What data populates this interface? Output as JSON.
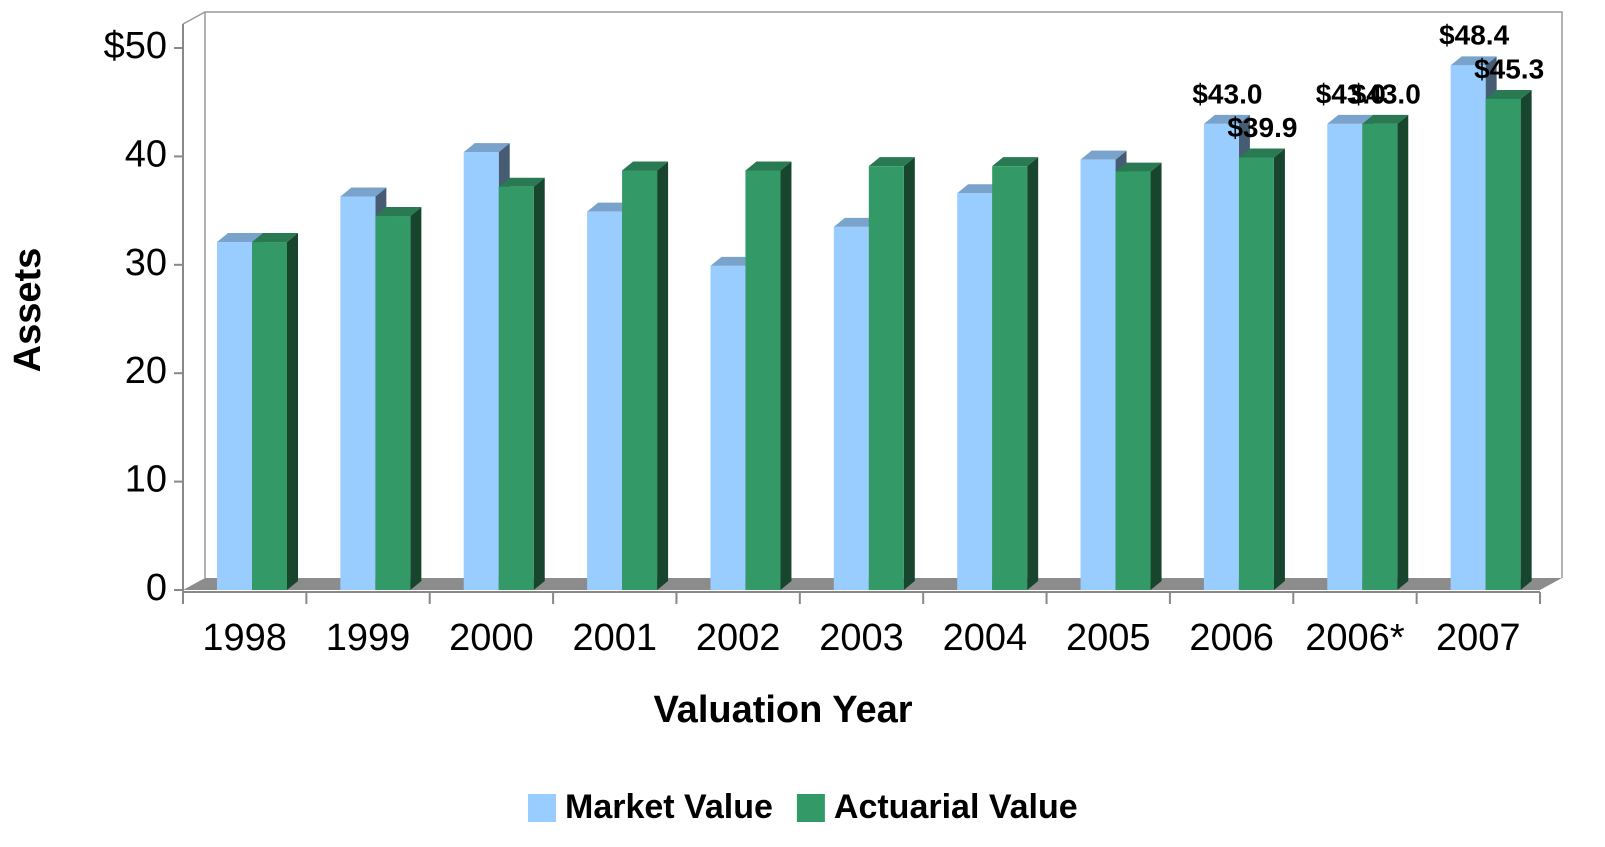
{
  "chart_data": {
    "type": "bar",
    "xlabel": "Valuation Year",
    "ylabel": "Assets",
    "categories": [
      "1998",
      "1999",
      "2000",
      "2001",
      "2002",
      "2003",
      "2004",
      "2005",
      "2006",
      "2006*",
      "2007"
    ],
    "series": [
      {
        "name": "Market Value",
        "color": "#99ccff",
        "values": [
          32.1,
          36.3,
          40.4,
          34.9,
          29.9,
          33.5,
          36.6,
          39.7,
          43.0,
          43.0,
          48.4
        ],
        "value_labels": [
          null,
          null,
          null,
          null,
          null,
          null,
          null,
          null,
          "$43.0",
          "$43.0",
          "$48.4"
        ]
      },
      {
        "name": "Actuarial Value",
        "color": "#339966",
        "values": [
          32.1,
          34.5,
          37.2,
          38.7,
          38.7,
          39.1,
          39.1,
          38.6,
          39.9,
          43.0,
          45.3
        ],
        "value_labels": [
          null,
          null,
          null,
          null,
          null,
          null,
          null,
          null,
          "$39.9",
          "$43.0",
          "$45.3"
        ]
      }
    ],
    "ylim": [
      0,
      50
    ],
    "yticks": [
      0,
      10,
      20,
      30,
      40,
      {
        "value": 50,
        "label": "$50"
      }
    ],
    "grid": false,
    "legend": "bottom"
  }
}
